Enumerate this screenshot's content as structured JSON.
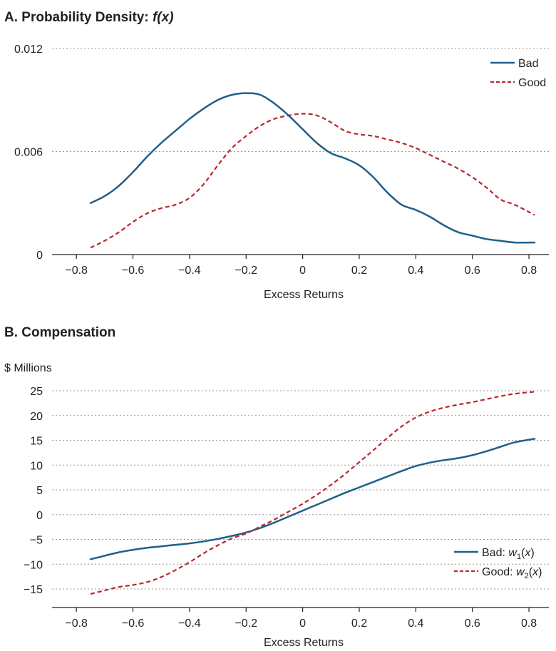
{
  "chart_data": [
    {
      "id": "A",
      "type": "line",
      "title": "A. Probability Density:",
      "title_math": "f(x)",
      "xlabel": "Excess Returns",
      "ylabel": "",
      "xlim": [
        -0.85,
        0.85
      ],
      "ylim": [
        0,
        0.012
      ],
      "xticks": [
        -0.8,
        -0.6,
        -0.4,
        -0.2,
        0,
        0.2,
        0.4,
        0.6,
        0.8
      ],
      "xtick_labels": [
        "−0.8",
        "−0.6",
        "−0.4",
        "−0.2",
        "0",
        "0.2",
        "0.4",
        "0.6",
        "0.8"
      ],
      "yticks": [
        0,
        0.006,
        0.012
      ],
      "ytick_labels": [
        "0",
        "0.006",
        "0.012"
      ],
      "grid": "horizontal dotted",
      "legend_position": "top-right",
      "series": [
        {
          "name": "Bad",
          "color": "#1f5f8b",
          "dash": "solid",
          "points": [
            [
              -0.75,
              0.003
            ],
            [
              -0.7,
              0.0034
            ],
            [
              -0.65,
              0.004
            ],
            [
              -0.6,
              0.0048
            ],
            [
              -0.55,
              0.0057
            ],
            [
              -0.5,
              0.0065
            ],
            [
              -0.45,
              0.0072
            ],
            [
              -0.4,
              0.0079
            ],
            [
              -0.35,
              0.0085
            ],
            [
              -0.3,
              0.009
            ],
            [
              -0.25,
              0.0093
            ],
            [
              -0.2,
              0.0094
            ],
            [
              -0.15,
              0.0093
            ],
            [
              -0.1,
              0.0088
            ],
            [
              -0.05,
              0.0081
            ],
            [
              0.0,
              0.0073
            ],
            [
              0.05,
              0.0065
            ],
            [
              0.1,
              0.0059
            ],
            [
              0.15,
              0.0056
            ],
            [
              0.2,
              0.0052
            ],
            [
              0.25,
              0.0045
            ],
            [
              0.3,
              0.0036
            ],
            [
              0.35,
              0.0029
            ],
            [
              0.4,
              0.0026
            ],
            [
              0.45,
              0.0022
            ],
            [
              0.5,
              0.0017
            ],
            [
              0.55,
              0.0013
            ],
            [
              0.6,
              0.0011
            ],
            [
              0.65,
              0.0009
            ],
            [
              0.7,
              0.0008
            ],
            [
              0.75,
              0.0007
            ],
            [
              0.82,
              0.0007
            ]
          ]
        },
        {
          "name": "Good",
          "color": "#b5292f",
          "dash": "dashed",
          "points": [
            [
              -0.75,
              0.0004
            ],
            [
              -0.7,
              0.0008
            ],
            [
              -0.65,
              0.0013
            ],
            [
              -0.6,
              0.0019
            ],
            [
              -0.55,
              0.0024
            ],
            [
              -0.5,
              0.0027
            ],
            [
              -0.45,
              0.0029
            ],
            [
              -0.4,
              0.0033
            ],
            [
              -0.35,
              0.0041
            ],
            [
              -0.3,
              0.0052
            ],
            [
              -0.25,
              0.0062
            ],
            [
              -0.2,
              0.0069
            ],
            [
              -0.15,
              0.0075
            ],
            [
              -0.1,
              0.0079
            ],
            [
              -0.05,
              0.0081
            ],
            [
              0.0,
              0.0082
            ],
            [
              0.05,
              0.0081
            ],
            [
              0.1,
              0.0077
            ],
            [
              0.15,
              0.0072
            ],
            [
              0.2,
              0.007
            ],
            [
              0.25,
              0.0069
            ],
            [
              0.3,
              0.0067
            ],
            [
              0.35,
              0.0065
            ],
            [
              0.4,
              0.0062
            ],
            [
              0.45,
              0.0058
            ],
            [
              0.5,
              0.0054
            ],
            [
              0.55,
              0.005
            ],
            [
              0.6,
              0.0045
            ],
            [
              0.65,
              0.0039
            ],
            [
              0.7,
              0.0032
            ],
            [
              0.75,
              0.0029
            ],
            [
              0.82,
              0.0023
            ]
          ]
        }
      ]
    },
    {
      "id": "B",
      "type": "line",
      "title": "B. Compensation",
      "xlabel": "Excess Returns",
      "ylabel": "$ Millions",
      "xlim": [
        -0.85,
        0.85
      ],
      "ylim": [
        -18,
        25
      ],
      "xticks": [
        -0.8,
        -0.6,
        -0.4,
        -0.2,
        0,
        0.2,
        0.4,
        0.6,
        0.8
      ],
      "xtick_labels": [
        "−0.8",
        "−0.6",
        "−0.4",
        "−0.2",
        "0",
        "0.2",
        "0.4",
        "0.6",
        "0.8"
      ],
      "yticks": [
        25,
        20,
        15,
        10,
        5,
        0,
        -5,
        -10,
        -15
      ],
      "ytick_labels": [
        "25",
        "20",
        "15",
        "10",
        "5",
        "0",
        "−5",
        "−10",
        "−15"
      ],
      "grid": "horizontal dotted",
      "legend_position": "bottom-right",
      "series": [
        {
          "name": "Bad:",
          "name_math": "w1(x)",
          "color": "#1f5f8b",
          "dash": "solid",
          "points": [
            [
              -0.75,
              -9.0
            ],
            [
              -0.7,
              -8.3
            ],
            [
              -0.65,
              -7.6
            ],
            [
              -0.6,
              -7.1
            ],
            [
              -0.55,
              -6.7
            ],
            [
              -0.5,
              -6.4
            ],
            [
              -0.45,
              -6.1
            ],
            [
              -0.4,
              -5.8
            ],
            [
              -0.35,
              -5.4
            ],
            [
              -0.3,
              -4.9
            ],
            [
              -0.25,
              -4.3
            ],
            [
              -0.2,
              -3.6
            ],
            [
              -0.15,
              -2.7
            ],
            [
              -0.1,
              -1.6
            ],
            [
              -0.05,
              -0.4
            ],
            [
              0.0,
              0.8
            ],
            [
              0.05,
              2.0
            ],
            [
              0.1,
              3.2
            ],
            [
              0.15,
              4.4
            ],
            [
              0.2,
              5.5
            ],
            [
              0.25,
              6.6
            ],
            [
              0.3,
              7.7
            ],
            [
              0.35,
              8.8
            ],
            [
              0.4,
              9.8
            ],
            [
              0.45,
              10.5
            ],
            [
              0.5,
              11.0
            ],
            [
              0.55,
              11.4
            ],
            [
              0.6,
              12.0
            ],
            [
              0.65,
              12.8
            ],
            [
              0.7,
              13.7
            ],
            [
              0.75,
              14.6
            ],
            [
              0.82,
              15.3
            ]
          ]
        },
        {
          "name": "Good:",
          "name_math": "w2(x)",
          "color": "#b5292f",
          "dash": "dashed",
          "points": [
            [
              -0.75,
              -16.0
            ],
            [
              -0.7,
              -15.3
            ],
            [
              -0.65,
              -14.6
            ],
            [
              -0.6,
              -14.2
            ],
            [
              -0.55,
              -13.6
            ],
            [
              -0.5,
              -12.6
            ],
            [
              -0.45,
              -11.2
            ],
            [
              -0.4,
              -9.6
            ],
            [
              -0.35,
              -7.8
            ],
            [
              -0.3,
              -6.2
            ],
            [
              -0.25,
              -4.8
            ],
            [
              -0.2,
              -3.8
            ],
            [
              -0.15,
              -2.4
            ],
            [
              -0.1,
              -1.0
            ],
            [
              -0.05,
              0.6
            ],
            [
              0.0,
              2.2
            ],
            [
              0.05,
              4.0
            ],
            [
              0.1,
              6.0
            ],
            [
              0.15,
              8.2
            ],
            [
              0.2,
              10.6
            ],
            [
              0.25,
              13.0
            ],
            [
              0.3,
              15.5
            ],
            [
              0.35,
              17.8
            ],
            [
              0.4,
              19.6
            ],
            [
              0.45,
              20.8
            ],
            [
              0.5,
              21.6
            ],
            [
              0.55,
              22.2
            ],
            [
              0.6,
              22.7
            ],
            [
              0.65,
              23.3
            ],
            [
              0.7,
              23.9
            ],
            [
              0.75,
              24.4
            ],
            [
              0.82,
              24.8
            ]
          ]
        }
      ]
    }
  ]
}
